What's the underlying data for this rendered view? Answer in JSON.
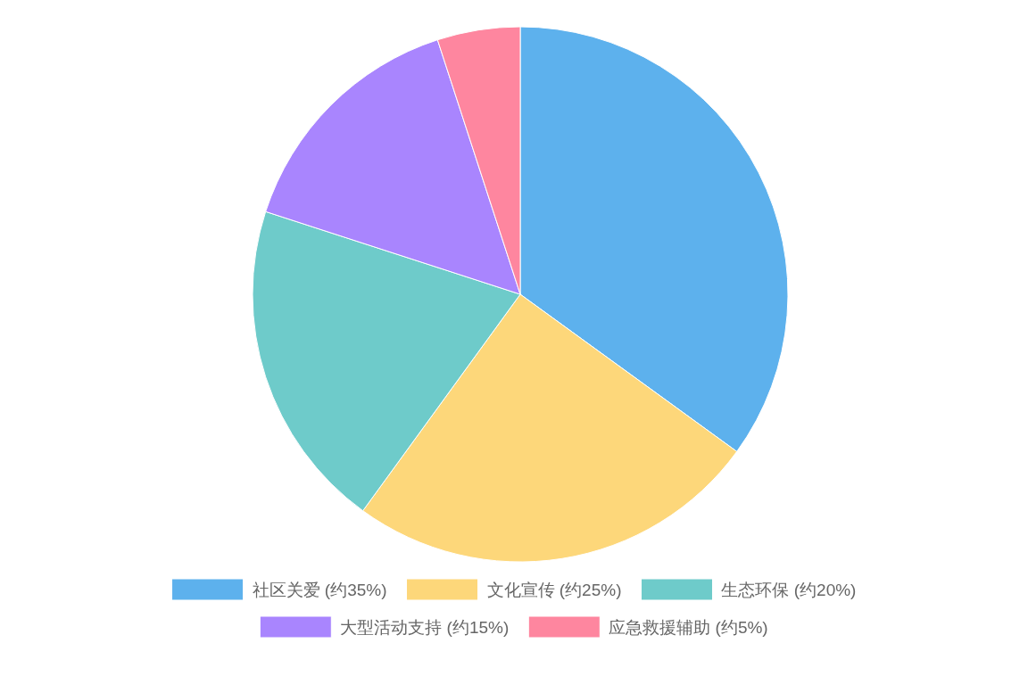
{
  "chart_data": {
    "type": "pie",
    "categories": [
      "社区关爱 (约35%)",
      "文化宣传 (约25%)",
      "生态环保 (约20%)",
      "大型活动支持 (约15%)",
      "应急救援辅助 (约5%)"
    ],
    "values": [
      35,
      25,
      20,
      15,
      5
    ],
    "colors": [
      "#5db1ed",
      "#fdd77a",
      "#6ecbca",
      "#a985fe",
      "#fe869f"
    ],
    "legend": "bottom"
  }
}
